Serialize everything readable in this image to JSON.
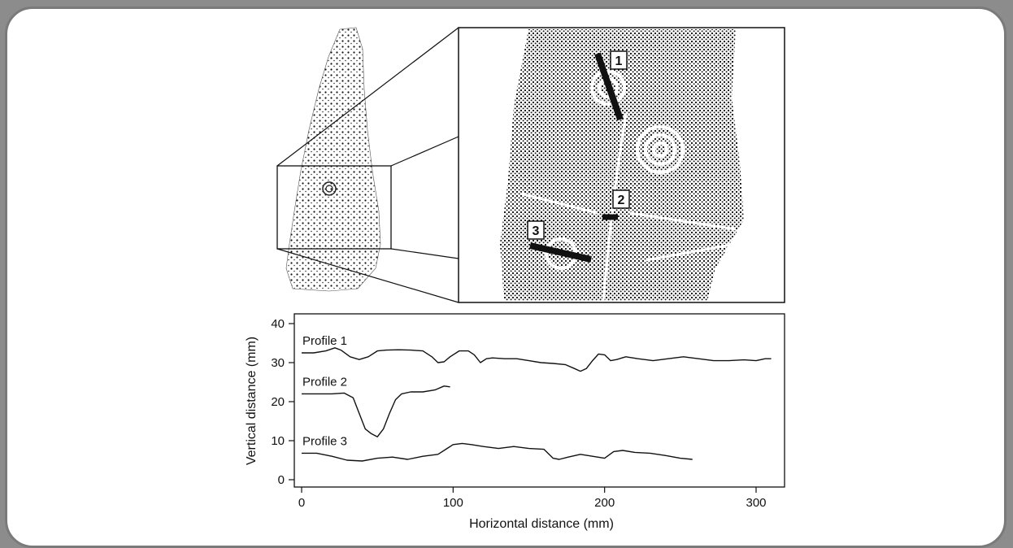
{
  "figure": {
    "inset": {
      "markers": [
        "1",
        "2",
        "3"
      ]
    }
  },
  "chart_data": {
    "type": "line",
    "xlabel": "Horizontal distance (mm)",
    "ylabel": "Vertical distance (mm)",
    "xlim": [
      0,
      320
    ],
    "ylim": [
      -2,
      42
    ],
    "xticks": [
      0,
      100,
      200,
      300
    ],
    "yticks": [
      0,
      10,
      20,
      30,
      40
    ],
    "grid": false,
    "legend": "none",
    "series": [
      {
        "name": "Profile 1",
        "x": [
          0,
          8,
          16,
          22,
          26,
          32,
          38,
          44,
          50,
          56,
          64,
          72,
          80,
          86,
          90,
          94,
          98,
          104,
          110,
          114,
          118,
          122,
          126,
          134,
          142,
          150,
          158,
          166,
          174,
          180,
          184,
          188,
          192,
          196,
          200,
          204,
          208,
          214,
          222,
          232,
          242,
          252,
          262,
          272,
          282,
          292,
          300,
          306,
          310
        ],
        "y": [
          32.5,
          32.5,
          33.0,
          33.8,
          33.2,
          31.5,
          30.8,
          31.5,
          33.0,
          33.2,
          33.3,
          33.2,
          33.0,
          31.5,
          30.0,
          30.2,
          31.5,
          33.0,
          33.0,
          32.0,
          30.0,
          31.0,
          31.2,
          31.0,
          31.0,
          30.5,
          30.0,
          29.8,
          29.5,
          28.5,
          27.8,
          28.5,
          30.5,
          32.2,
          32.0,
          30.5,
          30.8,
          31.5,
          31.0,
          30.5,
          31.0,
          31.5,
          31.0,
          30.5,
          30.5,
          30.7,
          30.5,
          31.0,
          31.0
        ]
      },
      {
        "name": "Profile 2",
        "x": [
          0,
          10,
          20,
          28,
          34,
          38,
          42,
          46,
          50,
          54,
          58,
          62,
          66,
          72,
          80,
          88,
          94,
          98
        ],
        "y": [
          22.0,
          22.0,
          22.0,
          22.2,
          21.0,
          17.0,
          13.0,
          11.8,
          11.0,
          13.0,
          17.0,
          20.5,
          22.0,
          22.5,
          22.5,
          23.0,
          24.0,
          23.8
        ]
      },
      {
        "name": "Profile 3",
        "x": [
          0,
          10,
          20,
          30,
          40,
          50,
          60,
          70,
          80,
          90,
          96,
          100,
          106,
          112,
          120,
          130,
          140,
          150,
          160,
          166,
          170,
          176,
          184,
          192,
          200,
          206,
          212,
          220,
          230,
          240,
          250,
          258
        ],
        "y": [
          6.8,
          6.8,
          6.0,
          5.0,
          4.8,
          5.5,
          5.8,
          5.2,
          6.0,
          6.5,
          8.0,
          9.0,
          9.3,
          9.0,
          8.5,
          8.0,
          8.5,
          8.0,
          7.8,
          5.5,
          5.2,
          5.8,
          6.5,
          6.0,
          5.5,
          7.2,
          7.5,
          7.0,
          6.8,
          6.2,
          5.5,
          5.2
        ]
      }
    ]
  }
}
